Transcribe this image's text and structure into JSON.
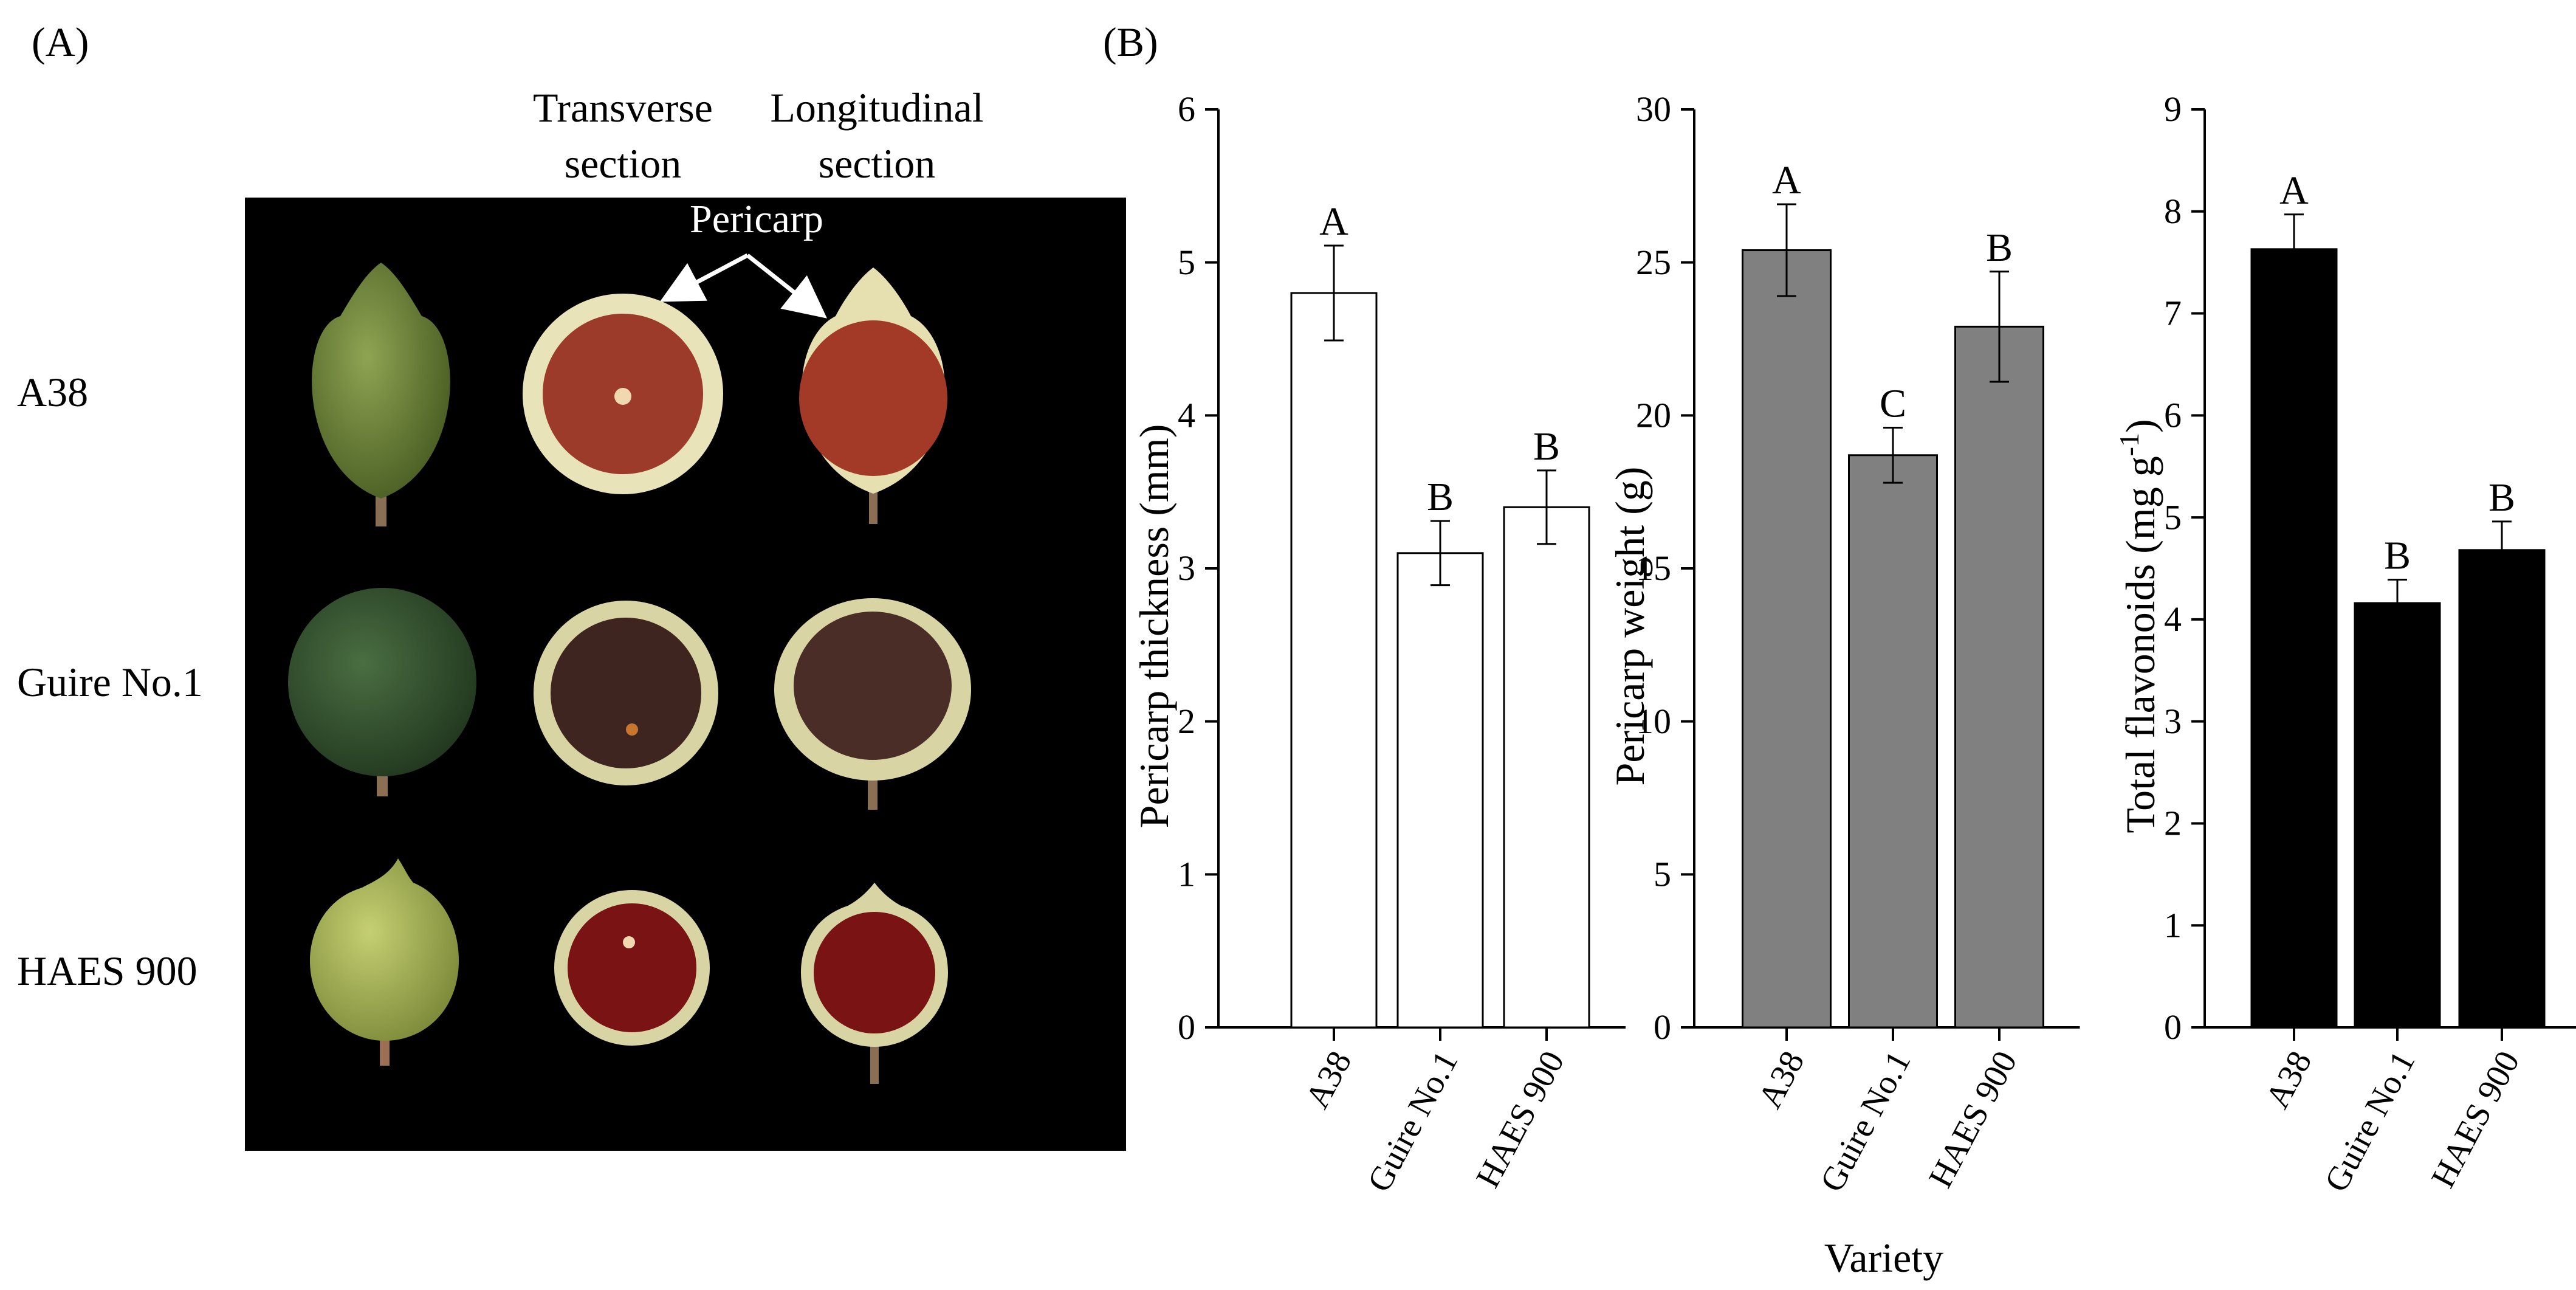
{
  "panel_a": {
    "label": "(A)",
    "columns": {
      "transverse_line1": "Transverse",
      "transverse_line2": "section",
      "longitudinal_line1": "Longitudinal",
      "longitudinal_line2": "section"
    },
    "pericarp_label": "Pericarp",
    "rows": [
      "A38",
      "Guire No.1",
      "HAES 900"
    ]
  },
  "panel_b": {
    "label": "(B)",
    "shared_xlabel": "Variety"
  },
  "chart_data": [
    {
      "type": "bar",
      "categories": [
        "A38",
        "Guire No.1",
        "HAES 900"
      ],
      "values": [
        4.8,
        3.1,
        3.4
      ],
      "errors": [
        0.31,
        0.21,
        0.24
      ],
      "significance": [
        "A",
        "B",
        "B"
      ],
      "ylabel": "Pericarp thickness (mm)",
      "ylim": [
        0,
        6
      ],
      "yticks": [
        0,
        1,
        2,
        3,
        4,
        5,
        6
      ],
      "bar_color": "#ffffff"
    },
    {
      "type": "bar",
      "categories": [
        "A38",
        "Guire No.1",
        "HAES 900"
      ],
      "values": [
        25.4,
        18.7,
        22.9
      ],
      "errors": [
        1.5,
        0.9,
        1.8
      ],
      "significance": [
        "A",
        "C",
        "B"
      ],
      "ylabel": "Pericarp weight (g)",
      "ylim": [
        0,
        30
      ],
      "yticks": [
        0,
        5,
        10,
        15,
        20,
        25,
        30
      ],
      "bar_color": "#808080"
    },
    {
      "type": "bar",
      "categories": [
        "A38",
        "Guire No.1",
        "HAES 900"
      ],
      "values": [
        7.63,
        4.16,
        4.68
      ],
      "errors": [
        0.34,
        0.23,
        0.28
      ],
      "significance": [
        "A",
        "B",
        "B"
      ],
      "ylabel": "Total flavonoids (mg g",
      "ylabel_sup": "-1",
      "ylabel_end": ")",
      "ylim": [
        0,
        9
      ],
      "yticks": [
        0,
        1,
        2,
        3,
        4,
        5,
        6,
        7,
        8,
        9
      ],
      "bar_color": "#000000"
    }
  ]
}
